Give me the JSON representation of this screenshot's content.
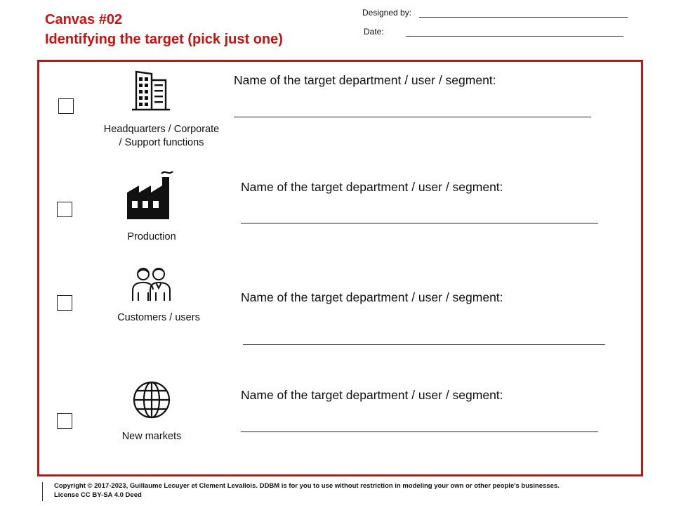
{
  "header": {
    "title_line1": "Canvas #02",
    "title_line2": "Identifying the target (pick just one)",
    "designed_by_label": "Designed by:",
    "date_label": "Date:"
  },
  "colors": {
    "accent": "#cc1111",
    "ink": "#111111"
  },
  "targets": [
    {
      "icon": "office-building-icon",
      "label_line1": "Headquarters / Corporate",
      "label_line2": "/ Support functions",
      "field_label": "Name of the target department / user / segment:"
    },
    {
      "icon": "factory-icon",
      "label_line1": "Production",
      "field_label": "Name of the target department / user / segment:"
    },
    {
      "icon": "people-icon",
      "label_line1": "Customers / users",
      "field_label": "Name of the target department / user / segment:"
    },
    {
      "icon": "globe-icon",
      "label_line1": "New markets",
      "field_label": "Name of the target department / user / segment:"
    }
  ],
  "footer": {
    "copyright": "Copyright © 2017-2023, Guillaume Lecuyer et Clement Levallois. DDBM is for you to use without restriction in modeling your own or other people's businesses.",
    "license": "License CC BY-SA 4.0 Deed"
  }
}
